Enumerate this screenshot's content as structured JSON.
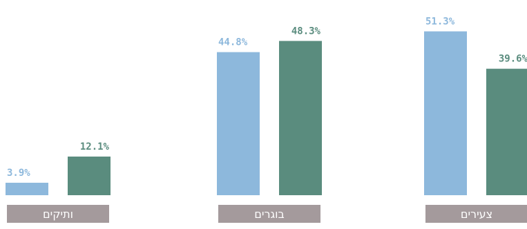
{
  "chart_data": {
    "type": "bar",
    "categories": [
      "ותיקים",
      "בוגרים",
      "צעירים"
    ],
    "series": [
      {
        "values": [
          3.9,
          44.8,
          51.3
        ],
        "labels": [
          "3.9%",
          "44.8%",
          "51.3%"
        ],
        "color": "#8db8dc"
      },
      {
        "values": [
          12.1,
          48.3,
          39.6
        ],
        "labels": [
          "12.1%",
          "48.3%",
          "39.6%"
        ],
        "color": "#5a8c7e"
      }
    ],
    "ylim": [
      0,
      55
    ],
    "category_label_color": "#a49a9c",
    "title": "",
    "xlabel": "",
    "ylabel": "",
    "grid": false,
    "legend": "none"
  }
}
